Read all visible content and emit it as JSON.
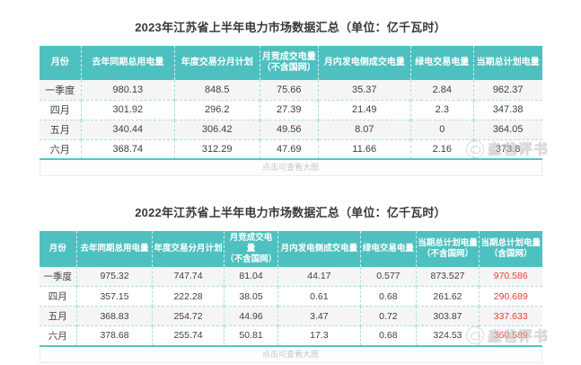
{
  "colors": {
    "header_bg": "#4fc0c0",
    "header_text": "#ffffff",
    "body_text": "#3f3f3f",
    "red_text": "#f03a3a",
    "border_teal": "#aadedf",
    "footer_text": "#c6c6c6",
    "watermark": "#bdbdbd"
  },
  "watermark": {
    "text": "淼爸评书"
  },
  "table2023": {
    "title": "2023年江苏省上半年电力市场数据汇总（单位：亿千瓦时）",
    "columns": [
      "月份",
      "去年同期总用电量",
      "年度交易分月计划",
      "月竞成交电量\n（不含国网）",
      "月内发电侧成交电量",
      "绿电交易电量",
      "当期总计划电量"
    ],
    "rows": [
      [
        "一季度",
        "980.13",
        "848.5",
        "75.66",
        "35.37",
        "2.84",
        "962.37"
      ],
      [
        "四月",
        "301.92",
        "296.2",
        "27.39",
        "21.49",
        "2.3",
        "347.38"
      ],
      [
        "五月",
        "340.44",
        "306.42",
        "49.56",
        "8.07",
        "0",
        "364.05"
      ],
      [
        "六月",
        "368.74",
        "312.29",
        "47.69",
        "11.66",
        "2.16",
        "373.8"
      ]
    ],
    "red_col": -1,
    "footer_note": "点击可查看大图"
  },
  "table2022": {
    "title": "2022年江苏省上半年电力市场数据汇总（单位：亿千瓦时）",
    "columns": [
      "月份",
      "去年同期总用电量",
      "年度交易分月计划",
      "月竞成交电量\n（不含国网）",
      "月内发电侧成交电量",
      "绿电交易电量",
      "当期总计划电量\n（不含国网）",
      "当期总计划电量\n（含国网）"
    ],
    "rows": [
      [
        "一季度",
        "975.32",
        "747.74",
        "81.04",
        "44.17",
        "0.577",
        "873.527",
        "970.586"
      ],
      [
        "四月",
        "357.15",
        "222.28",
        "38.05",
        "0.61",
        "0.68",
        "261.62",
        "290.689"
      ],
      [
        "五月",
        "368.83",
        "254.72",
        "44.96",
        "3.47",
        "0.72",
        "303.87",
        "337.633"
      ],
      [
        "六月",
        "378.68",
        "255.74",
        "50.81",
        "17.3",
        "0.68",
        "324.53",
        "360.589"
      ]
    ],
    "red_col": 7,
    "footer_note": "点击可查看大图"
  },
  "column_widths": {
    "table2023": [
      "8.4%",
      "18.5%",
      "17%",
      "11.6%",
      "18.4%",
      "12.5%",
      "13.6%"
    ],
    "table2022": [
      "7.5%",
      "15%",
      "14.3%",
      "10.7%",
      "16.4%",
      "11.1%",
      "12.5%",
      "12.5%"
    ]
  }
}
